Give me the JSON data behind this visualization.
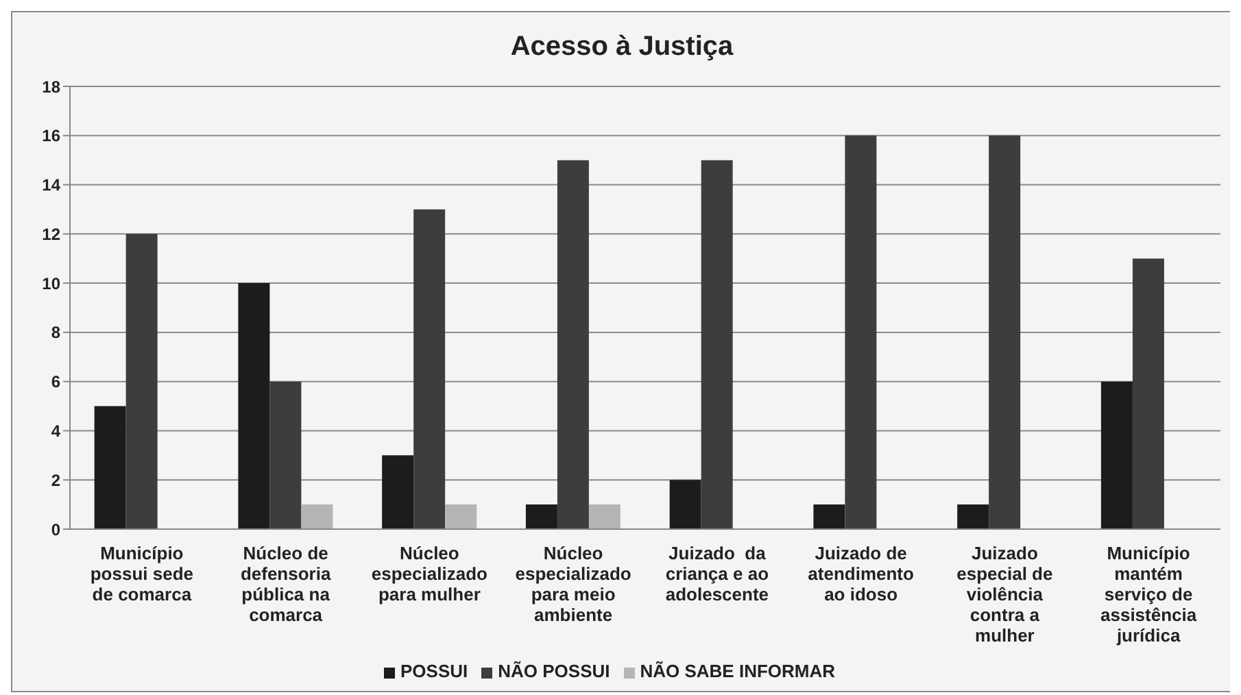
{
  "chart_data": {
    "type": "bar",
    "title": "Acesso à Justiça",
    "categories": [
      "Município possui sede de comarca",
      "Núcleo de defensoria pública na comarca",
      "Núcleo especializado para mulher",
      "Núcleo especializado para meio ambiente",
      "Juizado  da criança e ao adolescente",
      "Juizado de atendimento ao idoso",
      "Juizado especial de violência contra a mulher",
      "Município mantém serviço de assistência jurídica"
    ],
    "series": [
      {
        "name": "POSSUI",
        "color": "#1c1c1c",
        "values": [
          5,
          10,
          3,
          1,
          2,
          1,
          1,
          6
        ]
      },
      {
        "name": "NÃO POSSUI",
        "color": "#3d3d3d",
        "values": [
          12,
          6,
          13,
          15,
          15,
          16,
          16,
          11
        ]
      },
      {
        "name": "NÃO SABE INFORMAR",
        "color": "#b5b5b5",
        "values": [
          0,
          1,
          1,
          1,
          0,
          0,
          0,
          0
        ]
      }
    ],
    "ylim": [
      0,
      18
    ],
    "yticks": [
      0,
      2,
      4,
      6,
      8,
      10,
      12,
      14,
      16,
      18
    ],
    "grid": "y",
    "legend": "bottom"
  }
}
